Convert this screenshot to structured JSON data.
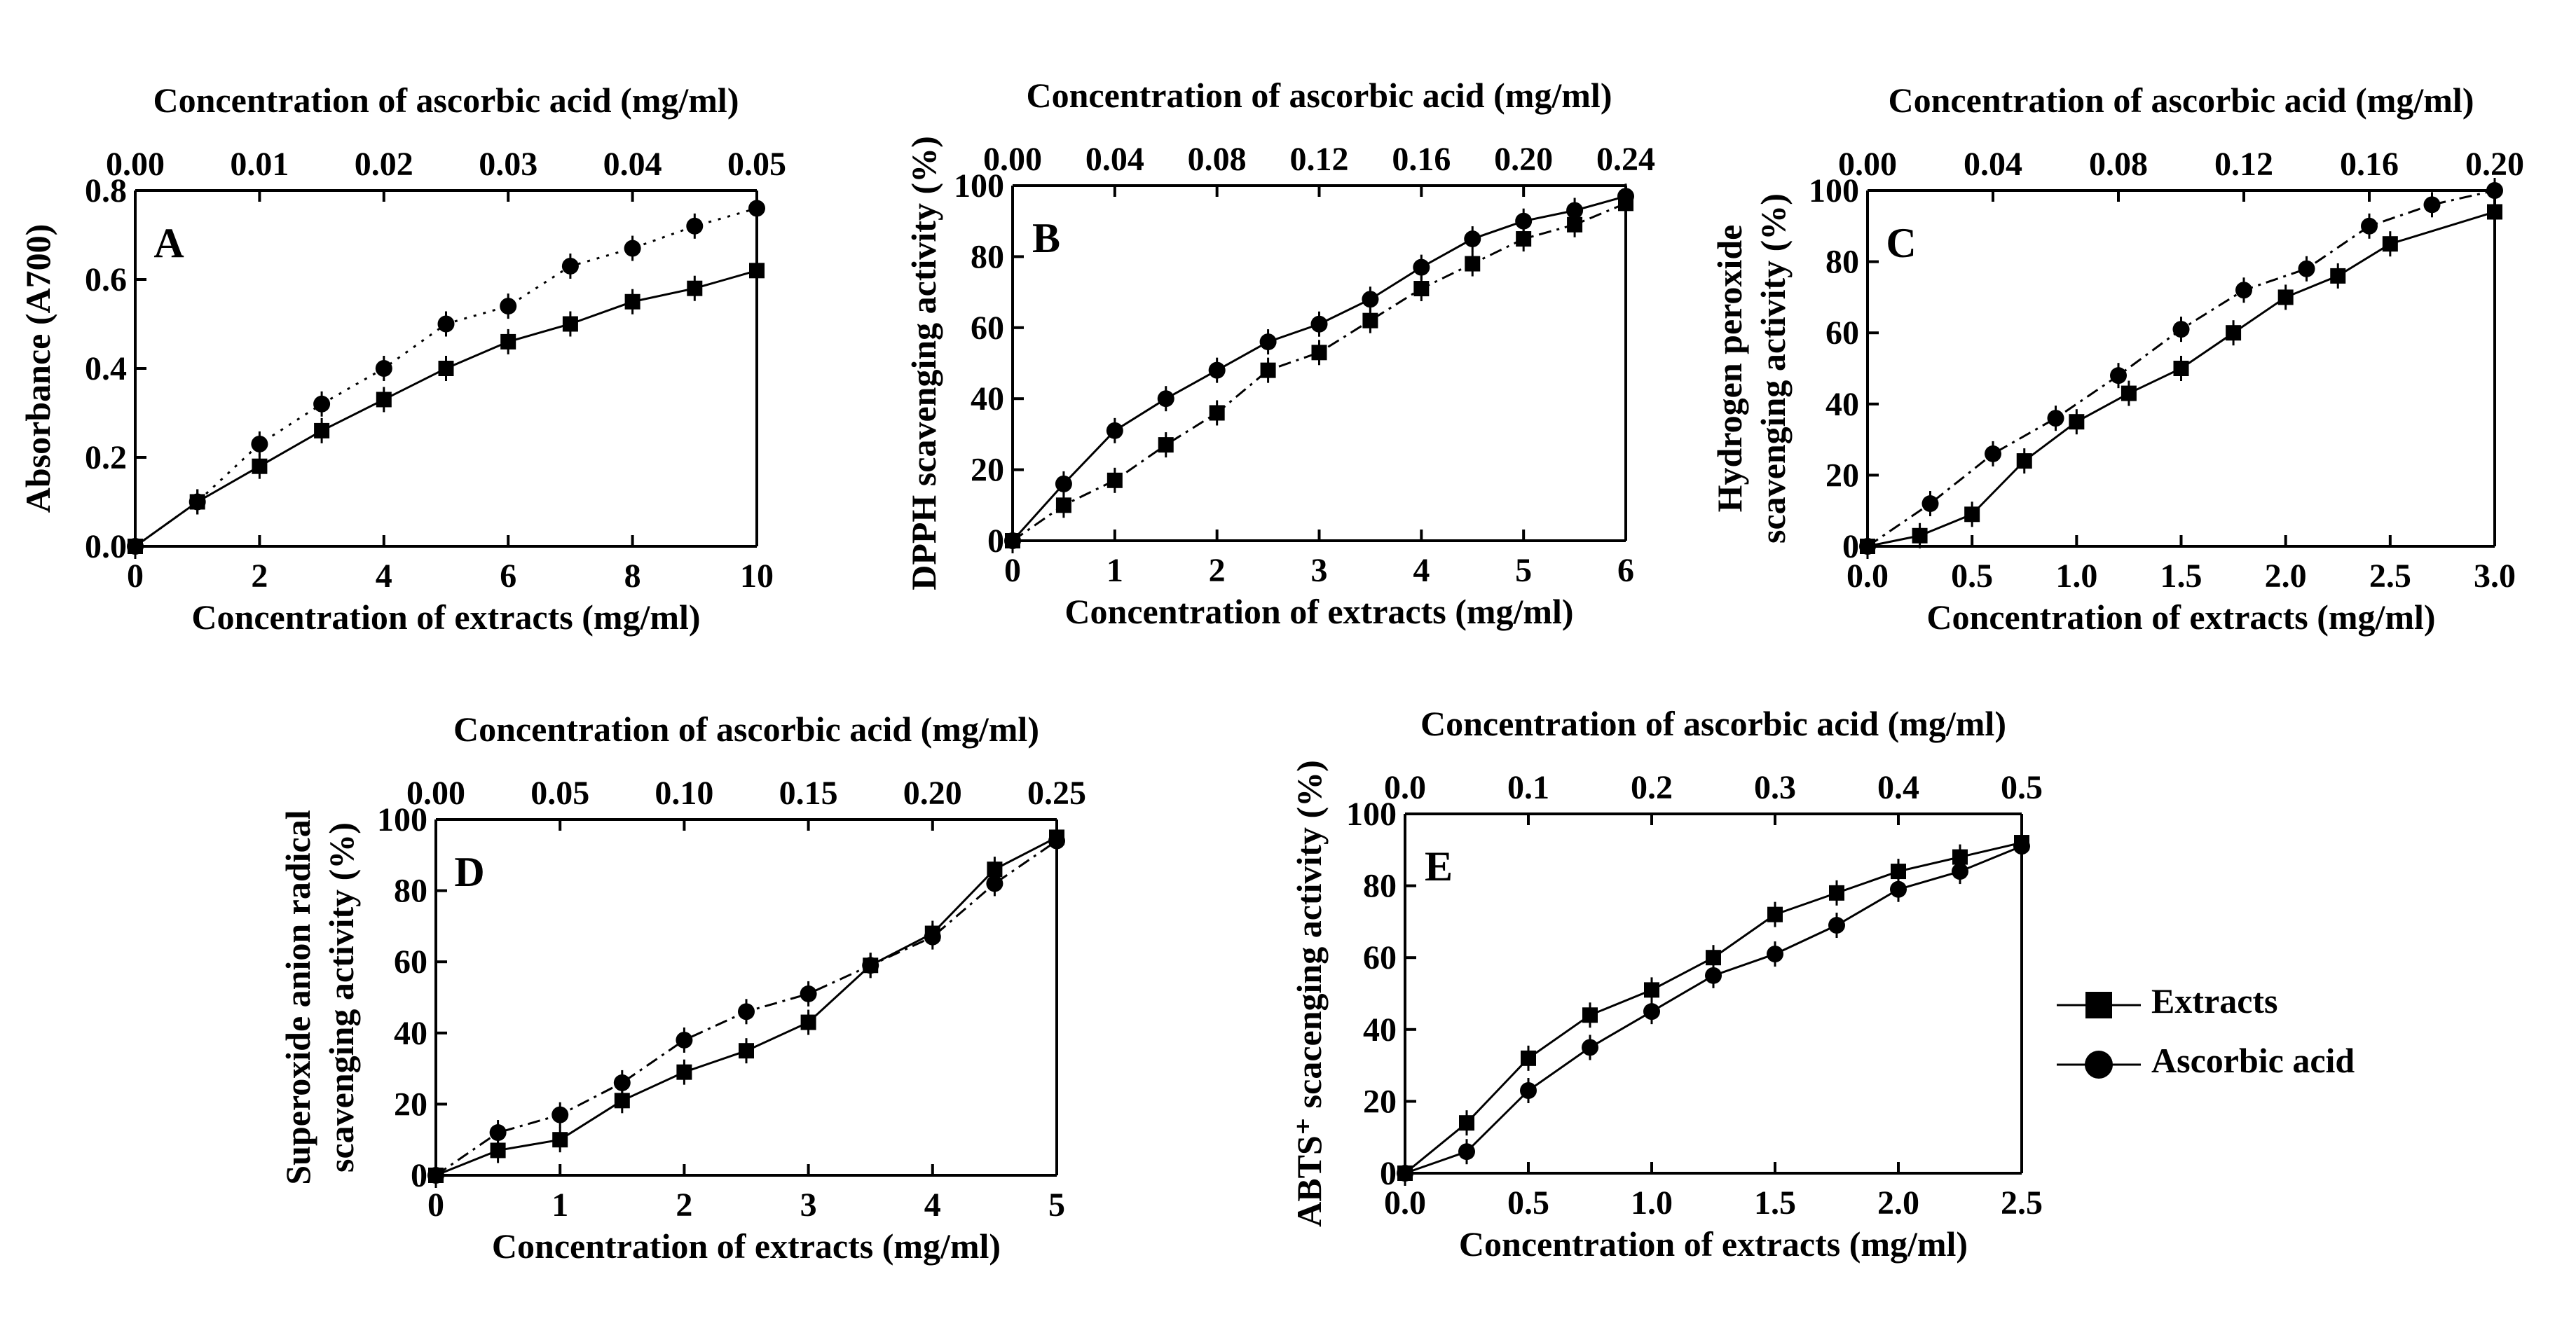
{
  "chart_data": [
    {
      "type": "line",
      "panel_label": "A",
      "title": "",
      "xlabel": "Concentration of extracts (mg/ml)",
      "top_xlabel": "Concentration of ascorbic acid (mg/ml)",
      "ylabel": "Absorbance (A700)",
      "xlim": [
        0,
        10
      ],
      "ylim": [
        0,
        0.8
      ],
      "top_xlim": [
        0,
        0.05
      ],
      "xticks": [
        "0",
        "2",
        "4",
        "6",
        "8",
        "10"
      ],
      "xtick_values": [
        0,
        2,
        4,
        6,
        8,
        10
      ],
      "yticks": [
        "0.0",
        "0.2",
        "0.4",
        "0.6",
        "0.8"
      ],
      "ytick_values": [
        0,
        0.2,
        0.4,
        0.6,
        0.8
      ],
      "top_xticks": [
        "0.00",
        "0.01",
        "0.02",
        "0.03",
        "0.04",
        "0.05"
      ],
      "top_xtick_values": [
        0,
        0.01,
        0.02,
        0.03,
        0.04,
        0.05
      ],
      "series": [
        {
          "name": "Extracts",
          "marker": "square",
          "axis": "bottom",
          "line": "solid",
          "x": [
            0,
            1,
            2,
            3,
            4,
            5,
            6,
            7,
            8,
            9,
            10
          ],
          "y": [
            0.0,
            0.1,
            0.18,
            0.26,
            0.33,
            0.4,
            0.46,
            0.5,
            0.55,
            0.58,
            0.62
          ]
        },
        {
          "name": "Ascorbic acid",
          "marker": "circle",
          "axis": "top",
          "line": "dotted",
          "x": [
            0,
            0.005,
            0.01,
            0.015,
            0.02,
            0.025,
            0.03,
            0.035,
            0.04,
            0.045,
            0.05
          ],
          "y": [
            0.0,
            0.1,
            0.23,
            0.32,
            0.4,
            0.5,
            0.54,
            0.63,
            0.67,
            0.72,
            0.76
          ]
        }
      ]
    },
    {
      "type": "line",
      "panel_label": "B",
      "title": "",
      "xlabel": "Concentration of extracts (mg/ml)",
      "top_xlabel": "Concentration of ascorbic acid (mg/ml)",
      "ylabel": "DPPH scavenging activity (%)",
      "xlim": [
        0,
        6
      ],
      "ylim": [
        0,
        100
      ],
      "top_xlim": [
        0,
        0.24
      ],
      "xticks": [
        "0",
        "1",
        "2",
        "3",
        "4",
        "5",
        "6"
      ],
      "xtick_values": [
        0,
        1,
        2,
        3,
        4,
        5,
        6
      ],
      "yticks": [
        "0",
        "20",
        "40",
        "60",
        "80",
        "100"
      ],
      "ytick_values": [
        0,
        20,
        40,
        60,
        80,
        100
      ],
      "top_xticks": [
        "0.00",
        "0.04",
        "0.08",
        "0.12",
        "0.16",
        "0.20",
        "0.24"
      ],
      "top_xtick_values": [
        0,
        0.04,
        0.08,
        0.12,
        0.16,
        0.2,
        0.24
      ],
      "series": [
        {
          "name": "Extracts",
          "marker": "square",
          "axis": "bottom",
          "line": "dashdot",
          "x": [
            0,
            0.5,
            1,
            1.5,
            2,
            2.5,
            3,
            3.5,
            4,
            4.5,
            5,
            5.5,
            6
          ],
          "y": [
            0,
            10,
            17,
            27,
            36,
            48,
            53,
            62,
            71,
            78,
            85,
            89,
            95
          ]
        },
        {
          "name": "Ascorbic acid",
          "marker": "circle",
          "axis": "top",
          "line": "solid",
          "x": [
            0,
            0.02,
            0.04,
            0.06,
            0.08,
            0.1,
            0.12,
            0.14,
            0.16,
            0.18,
            0.2,
            0.22,
            0.24
          ],
          "y": [
            0,
            16,
            31,
            40,
            48,
            56,
            61,
            68,
            77,
            85,
            90,
            93,
            97
          ]
        }
      ]
    },
    {
      "type": "line",
      "panel_label": "C",
      "title": "",
      "xlabel": "Concentration of extracts (mg/ml)",
      "top_xlabel": "Concentration of ascorbic acid (mg/ml)",
      "ylabel_line1": "Hydrogen peroxide",
      "ylabel_line2": "scavenging activity (%)",
      "xlim": [
        0,
        3.0
      ],
      "ylim": [
        0,
        100
      ],
      "top_xlim": [
        0,
        0.2
      ],
      "xticks": [
        "0.0",
        "0.5",
        "1.0",
        "1.5",
        "2.0",
        "2.5",
        "3.0"
      ],
      "xtick_values": [
        0,
        0.5,
        1.0,
        1.5,
        2.0,
        2.5,
        3.0
      ],
      "yticks": [
        "0",
        "20",
        "40",
        "60",
        "80",
        "100"
      ],
      "ytick_values": [
        0,
        20,
        40,
        60,
        80,
        100
      ],
      "top_xticks": [
        "0.00",
        "0.04",
        "0.08",
        "0.12",
        "0.16",
        "0.20"
      ],
      "top_xtick_values": [
        0,
        0.04,
        0.08,
        0.12,
        0.16,
        0.2
      ],
      "series": [
        {
          "name": "Extracts",
          "marker": "square",
          "axis": "bottom",
          "line": "solid",
          "x": [
            0,
            0.25,
            0.5,
            0.75,
            1.0,
            1.25,
            1.5,
            1.75,
            2.0,
            2.25,
            2.5,
            3.0
          ],
          "y": [
            0,
            3,
            9,
            24,
            35,
            43,
            50,
            60,
            70,
            76,
            85,
            94
          ]
        },
        {
          "name": "Ascorbic acid",
          "marker": "circle",
          "axis": "top",
          "line": "dashdot",
          "x": [
            0,
            0.02,
            0.04,
            0.06,
            0.08,
            0.1,
            0.12,
            0.14,
            0.16,
            0.18,
            0.2
          ],
          "y": [
            0,
            12,
            26,
            36,
            48,
            61,
            72,
            78,
            90,
            96,
            100
          ]
        }
      ]
    },
    {
      "type": "line",
      "panel_label": "D",
      "title": "",
      "xlabel": "Concentration of extracts (mg/ml)",
      "top_xlabel": "Concentration of ascorbic acid (mg/ml)",
      "ylabel_line1": "Superoxide anion radical",
      "ylabel_line2": "scavenging activity (%)",
      "xlim": [
        0,
        5
      ],
      "ylim": [
        0,
        100
      ],
      "top_xlim": [
        0,
        0.25
      ],
      "xticks": [
        "0",
        "1",
        "2",
        "3",
        "4",
        "5"
      ],
      "xtick_values": [
        0,
        1,
        2,
        3,
        4,
        5
      ],
      "yticks": [
        "0",
        "20",
        "40",
        "60",
        "80",
        "100"
      ],
      "ytick_values": [
        0,
        20,
        40,
        60,
        80,
        100
      ],
      "top_xticks": [
        "0.00",
        "0.05",
        "0.10",
        "0.15",
        "0.20",
        "0.25"
      ],
      "top_xtick_values": [
        0,
        0.05,
        0.1,
        0.15,
        0.2,
        0.25
      ],
      "series": [
        {
          "name": "Extracts",
          "marker": "square",
          "axis": "bottom",
          "line": "solid",
          "x": [
            0,
            0.5,
            1,
            1.5,
            2,
            2.5,
            3,
            3.5,
            4,
            4.5,
            5
          ],
          "y": [
            0,
            7,
            10,
            21,
            29,
            35,
            43,
            59,
            68,
            86,
            95
          ]
        },
        {
          "name": "Ascorbic acid",
          "marker": "circle",
          "axis": "top",
          "line": "dashdot",
          "x": [
            0,
            0.025,
            0.05,
            0.075,
            0.1,
            0.125,
            0.15,
            0.175,
            0.2,
            0.225,
            0.25
          ],
          "y": [
            0,
            12,
            17,
            26,
            38,
            46,
            51,
            59,
            67,
            82,
            94
          ]
        }
      ]
    },
    {
      "type": "line",
      "panel_label": "E",
      "title": "",
      "xlabel": "Concentration of extracts (mg/ml)",
      "top_xlabel": "Concentration of ascorbic acid (mg/ml)",
      "ylabel": "ABTS⁺ scacenging activity (%)",
      "xlim": [
        0,
        2.5
      ],
      "ylim": [
        0,
        100
      ],
      "top_xlim": [
        0,
        0.5
      ],
      "xticks": [
        "0.0",
        "0.5",
        "1.0",
        "1.5",
        "2.0",
        "2.5"
      ],
      "xtick_values": [
        0,
        0.5,
        1.0,
        1.5,
        2.0,
        2.5
      ],
      "yticks": [
        "0",
        "20",
        "40",
        "60",
        "80",
        "100"
      ],
      "ytick_values": [
        0,
        20,
        40,
        60,
        80,
        100
      ],
      "top_xticks": [
        "0.0",
        "0.1",
        "0.2",
        "0.3",
        "0.4",
        "0.5"
      ],
      "top_xtick_values": [
        0,
        0.1,
        0.2,
        0.3,
        0.4,
        0.5
      ],
      "series": [
        {
          "name": "Extracts",
          "marker": "square",
          "axis": "bottom",
          "line": "solid",
          "x": [
            0,
            0.25,
            0.5,
            0.75,
            1.0,
            1.25,
            1.5,
            1.75,
            2.0,
            2.25,
            2.5
          ],
          "y": [
            0,
            14,
            32,
            44,
            51,
            60,
            72,
            78,
            84,
            88,
            92
          ]
        },
        {
          "name": "Ascorbic acid",
          "marker": "circle",
          "axis": "top",
          "line": "solid",
          "x": [
            0,
            0.05,
            0.1,
            0.15,
            0.2,
            0.25,
            0.3,
            0.35,
            0.4,
            0.45,
            0.5
          ],
          "y": [
            0,
            6,
            23,
            35,
            45,
            55,
            61,
            69,
            79,
            84,
            91
          ]
        }
      ]
    }
  ],
  "legend": {
    "items": [
      {
        "label": "Extracts",
        "marker": "square"
      },
      {
        "label": "Ascorbic acid",
        "marker": "circle"
      }
    ]
  }
}
